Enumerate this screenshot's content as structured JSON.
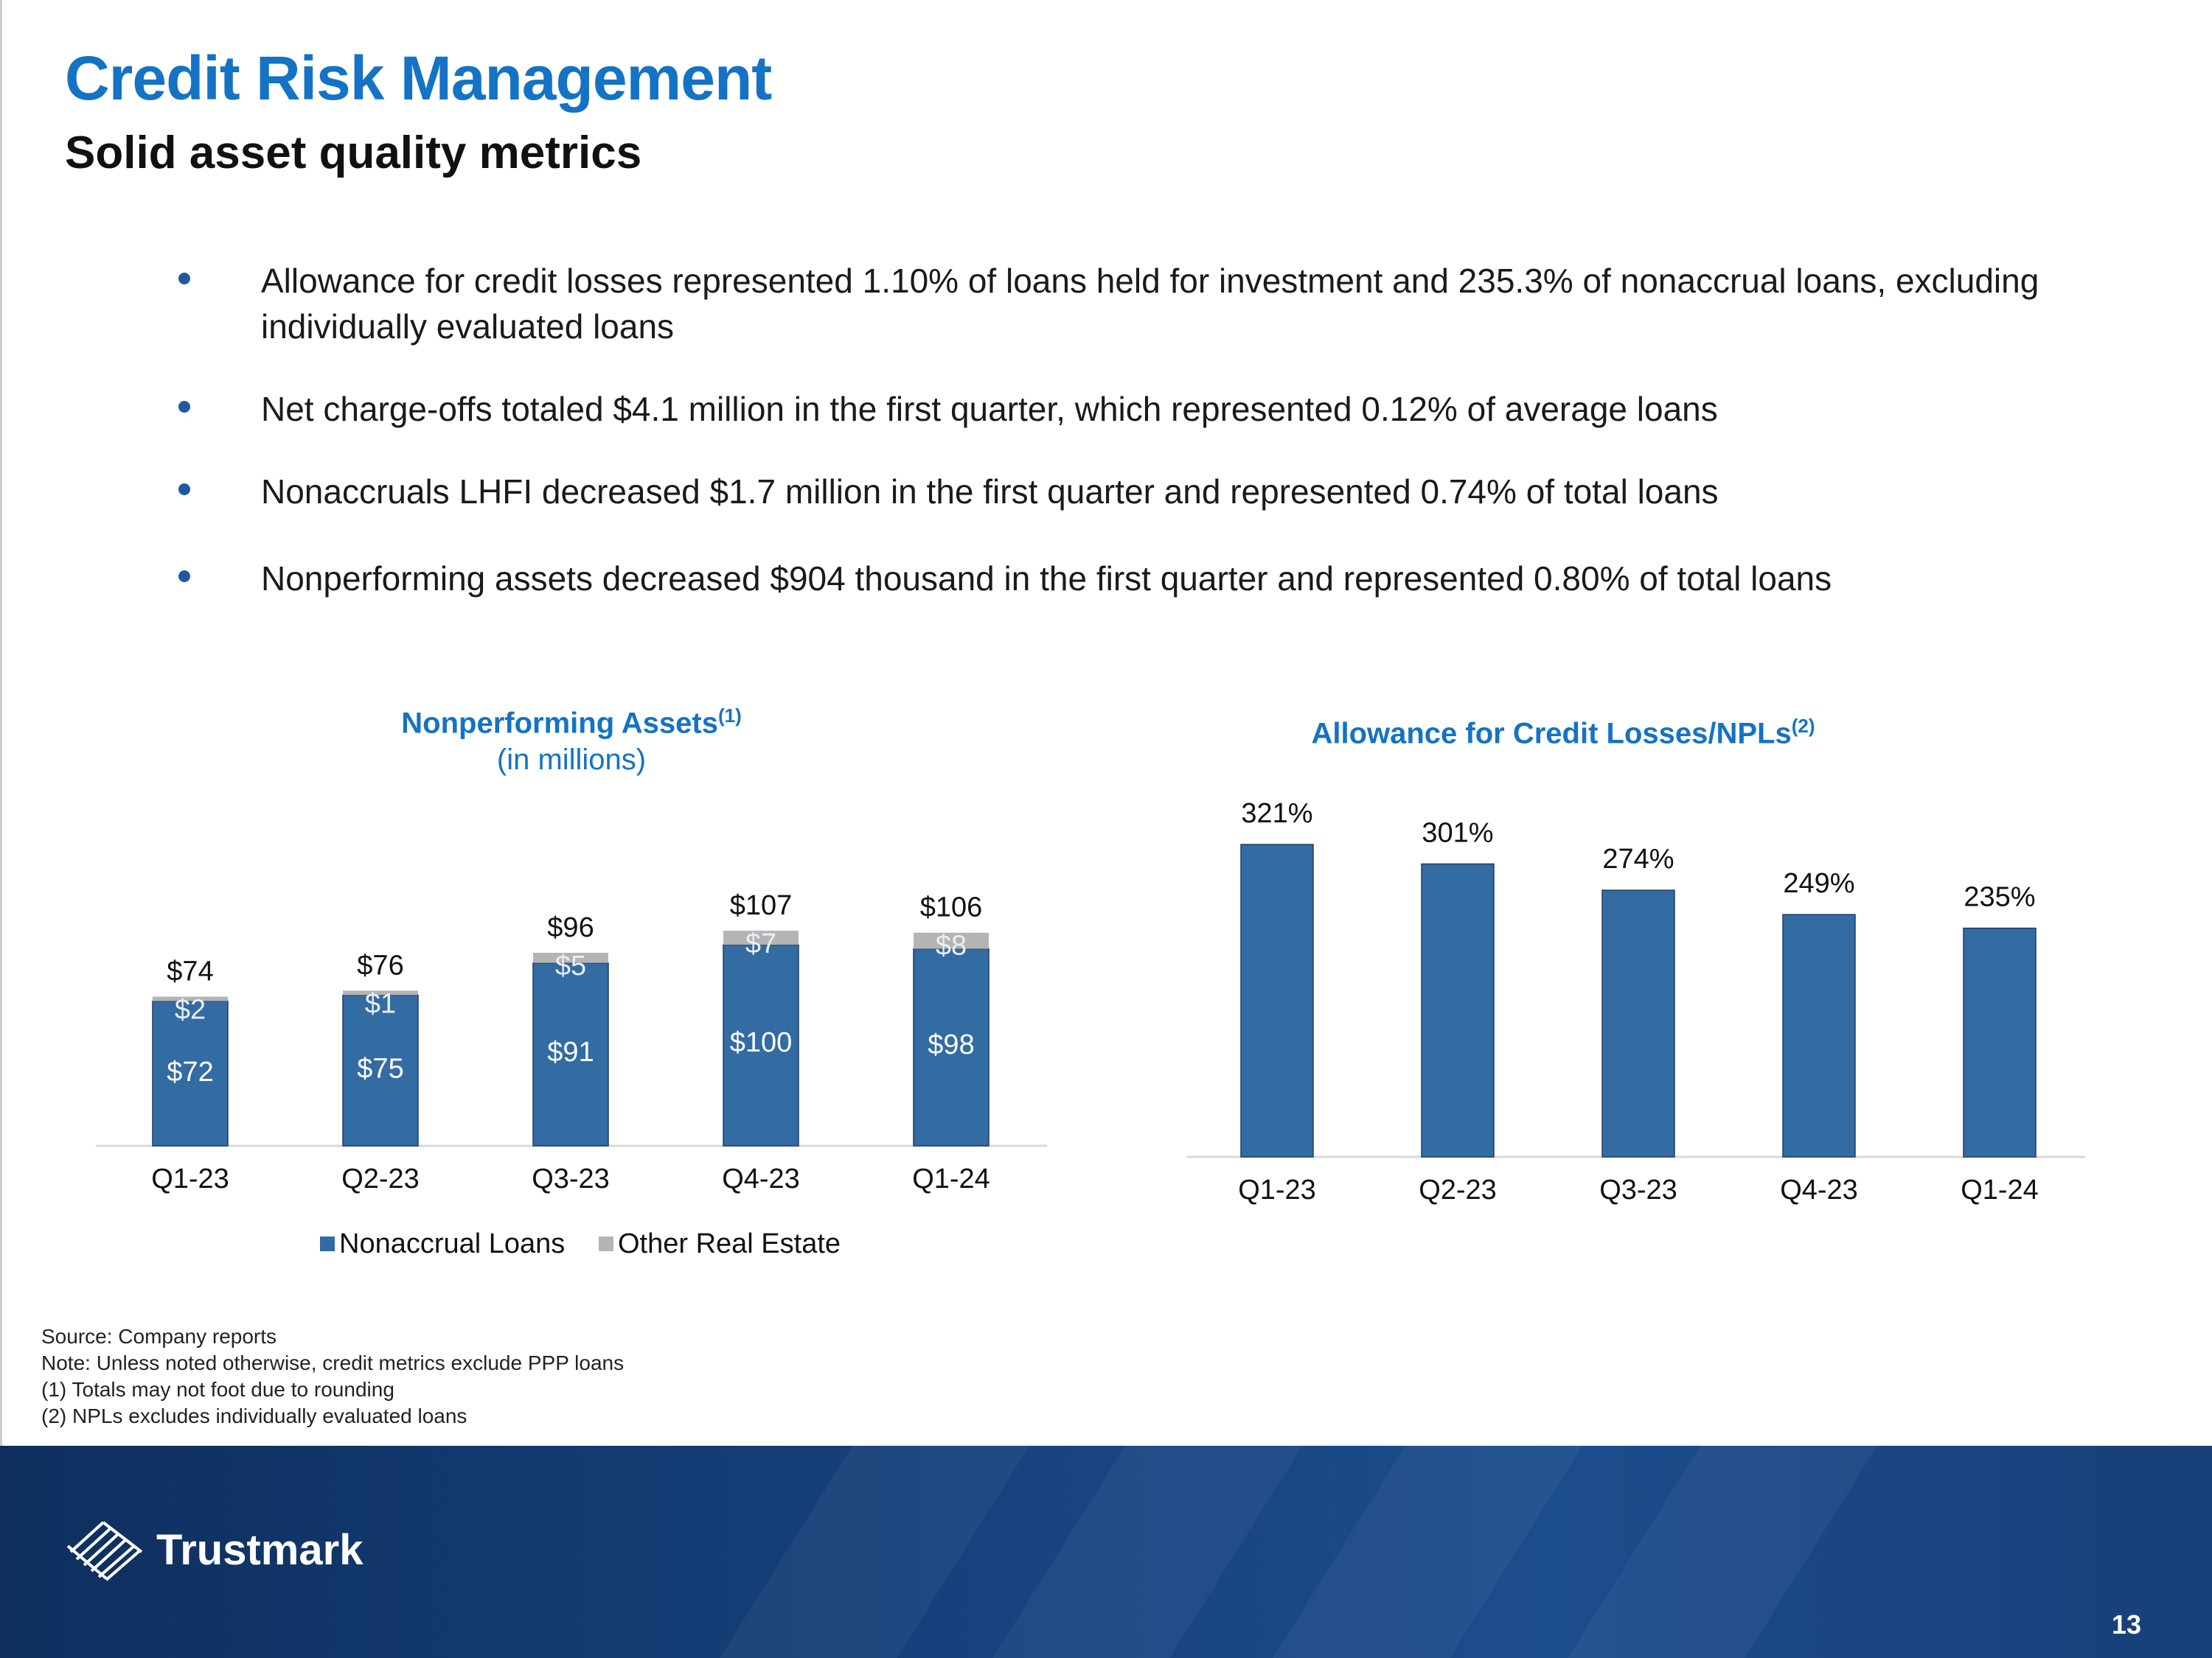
{
  "header": {
    "title": "Credit Risk Management",
    "subtitle": "Solid asset quality metrics"
  },
  "bullets": [
    "Allowance for credit losses represented 1.10% of loans held for investment and 235.3% of nonaccrual loans, excluding individually evaluated loans",
    "Net charge-offs totaled $4.1 million in the first quarter, which represented 0.12% of average loans",
    "Nonaccruals LHFI decreased $1.7 million in the first quarter and represented 0.74% of total loans",
    "Nonperforming assets decreased $904 thousand in the first quarter and represented 0.80% of total loans"
  ],
  "chart_data": [
    {
      "type": "bar",
      "stacked": true,
      "title": "Nonperforming Assets",
      "title_superscript": "(1)",
      "subtitle": "(in millions)",
      "categories": [
        "Q1-23",
        "Q2-23",
        "Q3-23",
        "Q4-23",
        "Q1-24"
      ],
      "series": [
        {
          "name": "Nonaccrual Loans",
          "values": [
            72,
            75,
            91,
            100,
            98
          ],
          "labels": [
            "$72",
            "$75",
            "$91",
            "$100",
            "$98"
          ],
          "color": "#336ba3"
        },
        {
          "name": "Other Real Estate",
          "values": [
            2,
            1,
            5,
            7,
            8
          ],
          "labels": [
            "$2",
            "$1",
            "$5",
            "$7",
            "$8"
          ],
          "color": "#b4b4b4"
        }
      ],
      "totals": [
        74,
        76,
        96,
        107,
        106
      ],
      "total_labels": [
        "$74",
        "$76",
        "$96",
        "$107",
        "$106"
      ],
      "ylim": [
        0,
        107
      ],
      "legend_position": "bottom",
      "grid": false
    },
    {
      "type": "bar",
      "title": "Allowance for Credit Losses/NPLs",
      "title_superscript": "(2)",
      "categories": [
        "Q1-23",
        "Q2-23",
        "Q3-23",
        "Q4-23",
        "Q1-24"
      ],
      "values": [
        321,
        301,
        274,
        249,
        235
      ],
      "value_labels": [
        "321%",
        "301%",
        "274%",
        "249%",
        "235%"
      ],
      "color": "#336ba3",
      "ylim": [
        0,
        321
      ],
      "grid": false
    }
  ],
  "footnotes": [
    "Source: Company reports",
    "Note: Unless noted otherwise, credit metrics exclude PPP loans",
    "(1) Totals may not foot due to rounding",
    "(2) NPLs excludes individually evaluated loans"
  ],
  "footer": {
    "brand": "Trustmark",
    "page_number": "13"
  },
  "colors": {
    "title_blue": "#1473c4",
    "bar_blue": "#336ba3",
    "bar_gray": "#b4b4b4",
    "footer_navy": "#173f78"
  }
}
